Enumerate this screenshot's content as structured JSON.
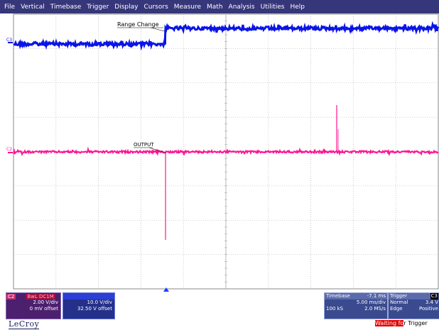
{
  "menu": [
    "File",
    "Vertical",
    "Timebase",
    "Trigger",
    "Display",
    "Cursors",
    "Measure",
    "Math",
    "Analysis",
    "Utilities",
    "Help"
  ],
  "traces": {
    "c3": {
      "marker": "C3",
      "label": "Range Change",
      "color": "#0a14e6"
    },
    "c2": {
      "marker": "C2",
      "label": "OUTPUT",
      "color": "#ff1493"
    }
  },
  "channel_boxes": {
    "c2": {
      "name": "C2",
      "meas": "BwL DC1M",
      "vdiv": "2.00 V/div",
      "offset": "0 mV offset"
    },
    "c3": {
      "name": "",
      "meas": "",
      "vdiv": "10.0 V/div",
      "offset": "32.50 V offset"
    }
  },
  "timebase": {
    "title": "Timebase",
    "delay": "-7.1 ms",
    "tdiv": "5.00 ms/div",
    "samples": "100 kS",
    "rate": "2.0 MS/s"
  },
  "trigger": {
    "title": "Trigger",
    "channel": "C3",
    "mode": "Normal",
    "level": "3.4 V",
    "type": "Edge",
    "slope": "Positive"
  },
  "logo": "LeCroy",
  "status": {
    "highlight": "Waiting fo",
    "rest": "r Trigger"
  },
  "colors": {
    "menubar": "#36367a",
    "grid": "#a8a8a8",
    "c2": "#ff1493",
    "c3": "#0a14e6",
    "trigger_marker": "#1e3cff"
  }
}
